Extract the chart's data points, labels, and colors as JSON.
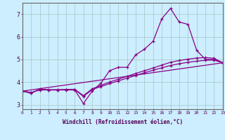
{
  "background_color": "#cceeff",
  "grid_color": "#aacccc",
  "line_color": "#880088",
  "xlabel": "Windchill (Refroidissement éolien,°C)",
  "xlim": [
    0,
    23
  ],
  "ylim": [
    2.8,
    7.5
  ],
  "yticks": [
    3,
    4,
    5,
    6,
    7
  ],
  "xticks": [
    0,
    1,
    2,
    3,
    4,
    5,
    6,
    7,
    8,
    9,
    10,
    11,
    12,
    13,
    14,
    15,
    16,
    17,
    18,
    19,
    20,
    21,
    22,
    23
  ],
  "series1_x": [
    0,
    1,
    2,
    3,
    4,
    5,
    6,
    7,
    8,
    9,
    10,
    11,
    12,
    13,
    14,
    15,
    16,
    17,
    18,
    19,
    20,
    21,
    22,
    23
  ],
  "series1_y": [
    3.6,
    3.5,
    3.7,
    3.65,
    3.65,
    3.65,
    3.65,
    3.05,
    3.6,
    3.95,
    4.5,
    4.65,
    4.65,
    5.2,
    5.45,
    5.8,
    6.8,
    7.25,
    6.65,
    6.55,
    5.4,
    5.0,
    5.0,
    4.85
  ],
  "series2_x": [
    0,
    1,
    2,
    3,
    4,
    5,
    6,
    7,
    8,
    9,
    10,
    11,
    12,
    13,
    14,
    15,
    16,
    17,
    18,
    19,
    20,
    21,
    22,
    23
  ],
  "series2_y": [
    3.6,
    3.52,
    3.68,
    3.66,
    3.66,
    3.67,
    3.68,
    3.4,
    3.7,
    3.85,
    4.0,
    4.12,
    4.25,
    4.38,
    4.5,
    4.62,
    4.75,
    4.87,
    4.95,
    5.01,
    5.06,
    5.08,
    5.05,
    4.85
  ],
  "series3_x": [
    0,
    23
  ],
  "series3_y": [
    3.6,
    4.85
  ],
  "series4_x": [
    0,
    1,
    2,
    3,
    4,
    5,
    6,
    7,
    8,
    9,
    10,
    11,
    12,
    13,
    14,
    15,
    16,
    17,
    18,
    19,
    20,
    21,
    22,
    23
  ],
  "series4_y": [
    3.6,
    3.54,
    3.65,
    3.65,
    3.65,
    3.66,
    3.67,
    3.36,
    3.67,
    3.8,
    3.93,
    4.05,
    4.17,
    4.29,
    4.41,
    4.52,
    4.63,
    4.73,
    4.81,
    4.87,
    4.92,
    4.96,
    4.97,
    4.85
  ]
}
